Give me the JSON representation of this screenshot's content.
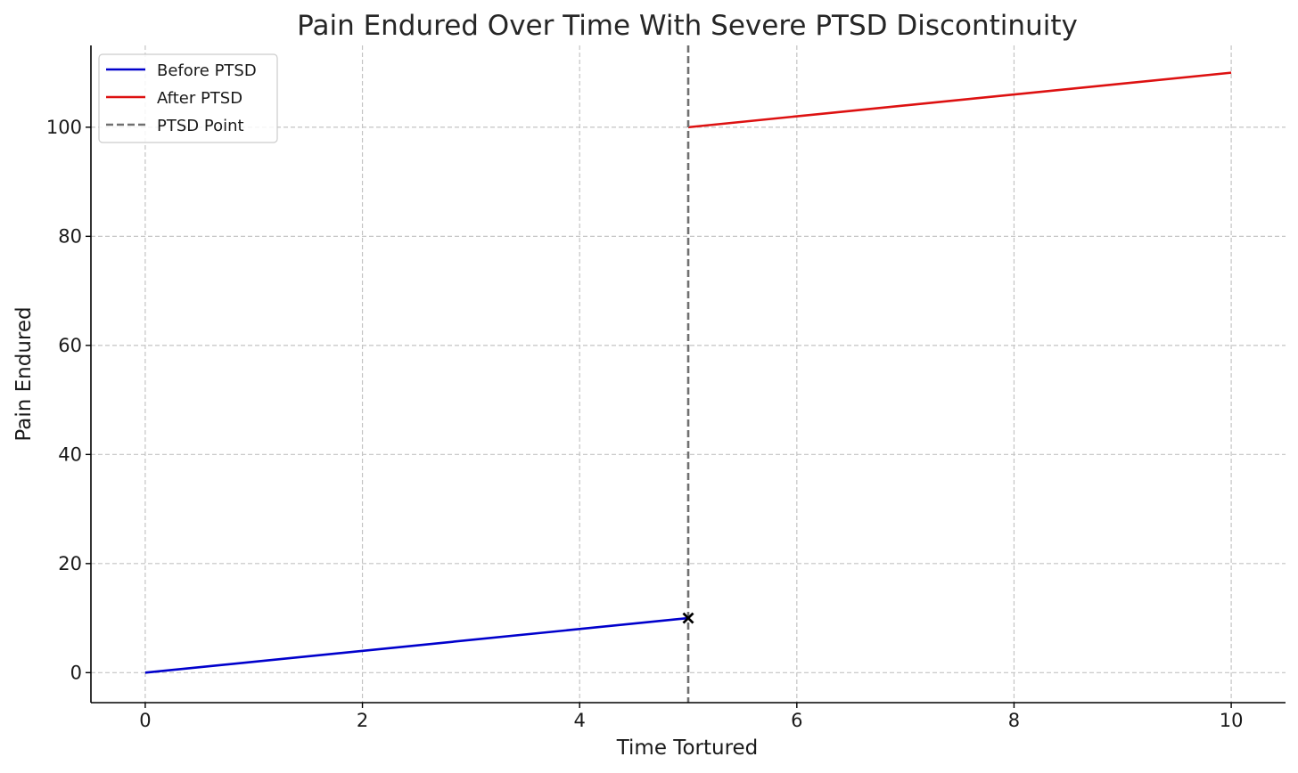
{
  "chart_data": {
    "type": "line",
    "title": "Pain Endured Over Time With Severe PTSD Discontinuity",
    "xlabel": "Time Tortured",
    "ylabel": "Pain Endured",
    "xlim": [
      -0.5,
      10.5
    ],
    "ylim": [
      -5.5,
      115
    ],
    "xticks": [
      0,
      2,
      4,
      6,
      8,
      10
    ],
    "xtick_labels": [
      "0",
      "2",
      "4",
      "6",
      "8",
      "10"
    ],
    "yticks": [
      0,
      20,
      40,
      60,
      80,
      100
    ],
    "ytick_labels": [
      "0",
      "20",
      "40",
      "60",
      "80",
      "100"
    ],
    "grid": true,
    "legend_position": "top-left",
    "series": [
      {
        "name": "Before PTSD",
        "color": "#0000cc",
        "style": "solid",
        "x": [
          0,
          5
        ],
        "y": [
          0,
          10
        ]
      },
      {
        "name": "After PTSD",
        "color": "#dd1111",
        "style": "solid",
        "x": [
          5,
          10
        ],
        "y": [
          100,
          110
        ]
      },
      {
        "name": "PTSD Point",
        "color": "#707070",
        "style": "dashed",
        "vline_x": 5
      }
    ],
    "markers": [
      {
        "type": "x",
        "x": 5,
        "y": 10,
        "color": "#000000"
      }
    ]
  }
}
